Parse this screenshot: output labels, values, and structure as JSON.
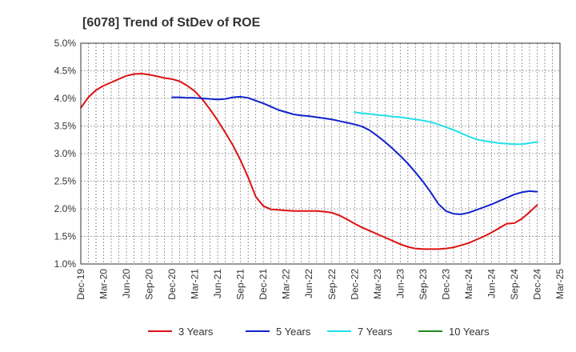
{
  "chart_data": {
    "type": "line",
    "title": "[6078]  Trend of StDev of ROE",
    "xlabel": "",
    "ylabel": "",
    "y_unit": "%",
    "ylim": [
      1.0,
      5.0
    ],
    "y_ticks": [
      "1.0%",
      "1.5%",
      "2.0%",
      "2.5%",
      "3.0%",
      "3.5%",
      "4.0%",
      "4.5%",
      "5.0%"
    ],
    "x_ticks": [
      "Dec-19",
      "Mar-20",
      "Jun-20",
      "Sep-20",
      "Dec-20",
      "Mar-21",
      "Jun-21",
      "Sep-21",
      "Dec-21",
      "Mar-22",
      "Jun-22",
      "Sep-22",
      "Dec-22",
      "Mar-23",
      "Jun-23",
      "Sep-23",
      "Dec-23",
      "Mar-24",
      "Jun-24",
      "Sep-24",
      "Dec-24",
      "Mar-25"
    ],
    "grid": true,
    "legend_position": "bottom",
    "series": [
      {
        "name": "3 Years",
        "color": "#dd1111",
        "points": [
          [
            "Dec-19",
            3.83
          ],
          [
            "Jan-20",
            4.02
          ],
          [
            "Feb-20",
            4.15
          ],
          [
            "Mar-20",
            4.23
          ],
          [
            "Apr-20",
            4.29
          ],
          [
            "May-20",
            4.35
          ],
          [
            "Jun-20",
            4.41
          ],
          [
            "Jul-20",
            4.44
          ],
          [
            "Aug-20",
            4.45
          ],
          [
            "Sep-20",
            4.43
          ],
          [
            "Oct-20",
            4.4
          ],
          [
            "Nov-20",
            4.37
          ],
          [
            "Dec-20",
            4.35
          ],
          [
            "Jan-21",
            4.31
          ],
          [
            "Feb-21",
            4.23
          ],
          [
            "Mar-21",
            4.13
          ],
          [
            "Apr-21",
            3.98
          ],
          [
            "May-21",
            3.8
          ],
          [
            "Jun-21",
            3.6
          ],
          [
            "Jul-21",
            3.38
          ],
          [
            "Aug-21",
            3.15
          ],
          [
            "Sep-21",
            2.88
          ],
          [
            "Oct-21",
            2.57
          ],
          [
            "Nov-21",
            2.22
          ],
          [
            "Dec-21",
            2.05
          ],
          [
            "Jan-22",
            1.99
          ],
          [
            "Feb-22",
            1.98
          ],
          [
            "Mar-22",
            1.97
          ],
          [
            "Apr-22",
            1.96
          ],
          [
            "May-22",
            1.96
          ],
          [
            "Jun-22",
            1.96
          ],
          [
            "Jul-22",
            1.96
          ],
          [
            "Aug-22",
            1.95
          ],
          [
            "Sep-22",
            1.93
          ],
          [
            "Oct-22",
            1.88
          ],
          [
            "Nov-22",
            1.81
          ],
          [
            "Dec-22",
            1.73
          ],
          [
            "Jan-23",
            1.66
          ],
          [
            "Feb-23",
            1.6
          ],
          [
            "Mar-23",
            1.54
          ],
          [
            "Apr-23",
            1.48
          ],
          [
            "May-23",
            1.42
          ],
          [
            "Jun-23",
            1.36
          ],
          [
            "Jul-23",
            1.31
          ],
          [
            "Aug-23",
            1.28
          ],
          [
            "Sep-23",
            1.27
          ],
          [
            "Oct-23",
            1.27
          ],
          [
            "Nov-23",
            1.27
          ],
          [
            "Dec-23",
            1.28
          ],
          [
            "Jan-24",
            1.3
          ],
          [
            "Feb-24",
            1.34
          ],
          [
            "Mar-24",
            1.38
          ],
          [
            "Apr-24",
            1.44
          ],
          [
            "May-24",
            1.5
          ],
          [
            "Jun-24",
            1.57
          ],
          [
            "Jul-24",
            1.65
          ],
          [
            "Aug-24",
            1.73
          ],
          [
            "Sep-24",
            1.74
          ],
          [
            "Oct-24",
            1.82
          ],
          [
            "Nov-24",
            1.94
          ],
          [
            "Dec-24",
            2.07
          ]
        ]
      },
      {
        "name": "5 Years",
        "color": "#1122cc",
        "points": [
          [
            "Dec-20",
            4.02
          ],
          [
            "Jan-21",
            4.02
          ],
          [
            "Feb-21",
            4.01
          ],
          [
            "Mar-21",
            4.01
          ],
          [
            "Apr-21",
            4.0
          ],
          [
            "May-21",
            3.99
          ],
          [
            "Jun-21",
            3.98
          ],
          [
            "Jul-21",
            3.99
          ],
          [
            "Aug-21",
            4.02
          ],
          [
            "Sep-21",
            4.03
          ],
          [
            "Oct-21",
            4.01
          ],
          [
            "Nov-21",
            3.96
          ],
          [
            "Dec-21",
            3.91
          ],
          [
            "Jan-22",
            3.85
          ],
          [
            "Feb-22",
            3.79
          ],
          [
            "Mar-22",
            3.75
          ],
          [
            "Apr-22",
            3.71
          ],
          [
            "May-22",
            3.69
          ],
          [
            "Jun-22",
            3.68
          ],
          [
            "Jul-22",
            3.66
          ],
          [
            "Aug-22",
            3.64
          ],
          [
            "Sep-22",
            3.62
          ],
          [
            "Oct-22",
            3.59
          ],
          [
            "Nov-22",
            3.56
          ],
          [
            "Dec-22",
            3.53
          ],
          [
            "Jan-23",
            3.49
          ],
          [
            "Feb-23",
            3.42
          ],
          [
            "Mar-23",
            3.32
          ],
          [
            "Apr-23",
            3.21
          ],
          [
            "May-23",
            3.09
          ],
          [
            "Jun-23",
            2.96
          ],
          [
            "Jul-23",
            2.82
          ],
          [
            "Aug-23",
            2.66
          ],
          [
            "Sep-23",
            2.49
          ],
          [
            "Oct-23",
            2.3
          ],
          [
            "Nov-23",
            2.09
          ],
          [
            "Dec-23",
            1.96
          ],
          [
            "Jan-24",
            1.91
          ],
          [
            "Feb-24",
            1.9
          ],
          [
            "Mar-24",
            1.93
          ],
          [
            "Apr-24",
            1.98
          ],
          [
            "May-24",
            2.03
          ],
          [
            "Jun-24",
            2.08
          ],
          [
            "Jul-24",
            2.14
          ],
          [
            "Aug-24",
            2.2
          ],
          [
            "Sep-24",
            2.26
          ],
          [
            "Oct-24",
            2.3
          ],
          [
            "Nov-24",
            2.32
          ],
          [
            "Dec-24",
            2.31
          ]
        ]
      },
      {
        "name": "7 Years",
        "color": "#22e0e8",
        "points": [
          [
            "Dec-22",
            3.75
          ],
          [
            "Jan-23",
            3.73
          ],
          [
            "Feb-23",
            3.72
          ],
          [
            "Mar-23",
            3.7
          ],
          [
            "Apr-23",
            3.69
          ],
          [
            "May-23",
            3.67
          ],
          [
            "Jun-23",
            3.66
          ],
          [
            "Jul-23",
            3.64
          ],
          [
            "Aug-23",
            3.62
          ],
          [
            "Sep-23",
            3.6
          ],
          [
            "Oct-23",
            3.57
          ],
          [
            "Nov-23",
            3.53
          ],
          [
            "Dec-23",
            3.48
          ],
          [
            "Jan-24",
            3.43
          ],
          [
            "Feb-24",
            3.37
          ],
          [
            "Mar-24",
            3.31
          ],
          [
            "Apr-24",
            3.26
          ],
          [
            "May-24",
            3.23
          ],
          [
            "Jun-24",
            3.21
          ],
          [
            "Jul-24",
            3.19
          ],
          [
            "Aug-24",
            3.18
          ],
          [
            "Sep-24",
            3.17
          ],
          [
            "Oct-24",
            3.17
          ],
          [
            "Nov-24",
            3.19
          ],
          [
            "Dec-24",
            3.21
          ]
        ]
      },
      {
        "name": "10 Years",
        "color": "#228822",
        "points": []
      }
    ]
  }
}
